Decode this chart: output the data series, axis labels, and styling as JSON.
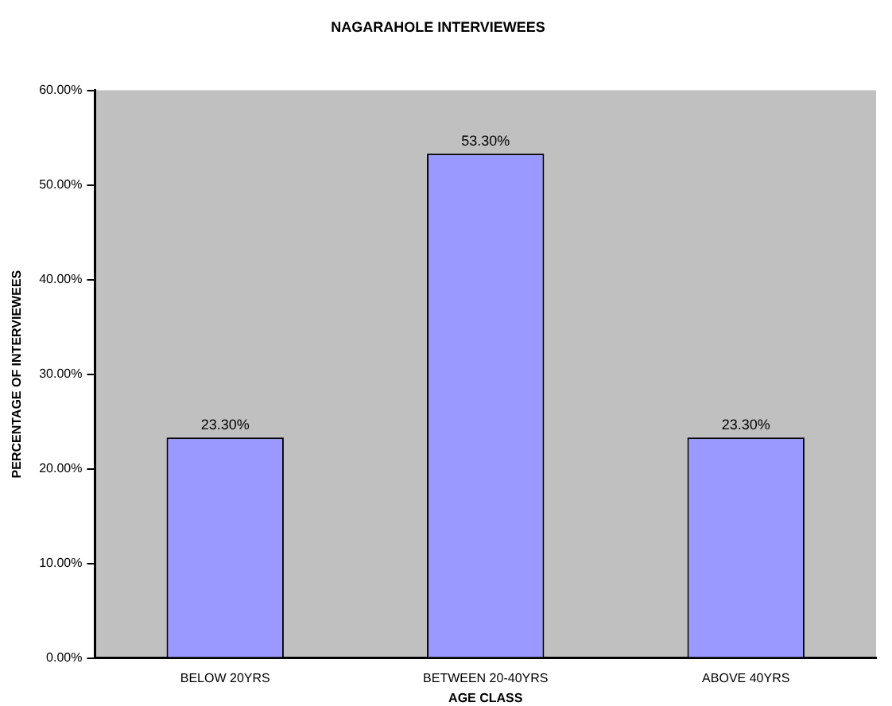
{
  "chart_data": {
    "type": "bar",
    "title": "NAGARAHOLE INTERVIEWEES",
    "xlabel": "AGE CLASS",
    "ylabel": "PERCENTAGE OF INTERVIEWEES",
    "categories": [
      "BELOW 20YRS",
      "BETWEEN 20-40YRS",
      "ABOVE 40YRS"
    ],
    "values": [
      23.3,
      53.3,
      23.3
    ],
    "color": "#9999ff",
    "value_labels": [
      "23.30%",
      "53.30%",
      "23.30%"
    ],
    "ylim": [
      0,
      60
    ],
    "yticks": [
      {
        "value": 0,
        "label": "0.00%"
      },
      {
        "value": 10,
        "label": "10.00%"
      },
      {
        "value": 20,
        "label": "20.00%"
      },
      {
        "value": 30,
        "label": "30.00%"
      },
      {
        "value": 40,
        "label": "40.00%"
      },
      {
        "value": 50,
        "label": "50.00%"
      },
      {
        "value": 60,
        "label": "60.00%"
      }
    ],
    "grid": false,
    "legend": false
  }
}
